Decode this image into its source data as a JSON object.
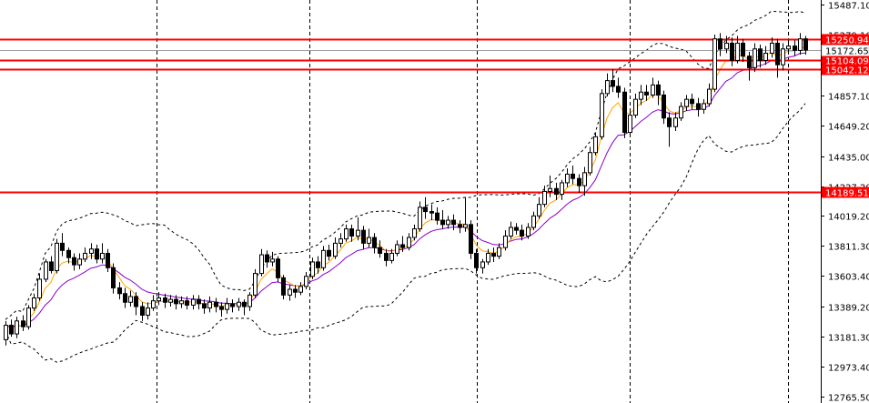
{
  "chart_data": {
    "type": "candlestick",
    "ylim": [
      12720,
      15520
    ],
    "y_ticks": [
      15487.1,
      15279.1,
      15065.1,
      14857.1,
      14649.2,
      14435.0,
      14227.2,
      14019.2,
      13811.3,
      13603.4,
      13389.2,
      13181.3,
      12973.4,
      12765.5
    ],
    "y_tick_labels": [
      "15487.10",
      "15279.10",
      "15065.10",
      "14857.10",
      "14649.20",
      "14435.00",
      "14227.20",
      "14019.20",
      "13811.30",
      "13603.40",
      "13389.20",
      "13181.30",
      "12973.40",
      "12765.50"
    ],
    "levels": [
      {
        "value": 15250.94,
        "label": "15250.94",
        "color": "#ff0000"
      },
      {
        "value": 15104.09,
        "label": "15104.09",
        "color": "#ff0000"
      },
      {
        "value": 15042.12,
        "label": "15042.12",
        "color": "#ff0000"
      },
      {
        "value": 14189.51,
        "label": "14189.51",
        "color": "#ff0000"
      }
    ],
    "current_price": {
      "value": 15172.65,
      "label": "15172.65"
    },
    "candles": [
      [
        13160,
        13260,
        13120,
        13290
      ],
      [
        13260,
        13200,
        13180,
        13300
      ],
      [
        13200,
        13290,
        13170,
        13320
      ],
      [
        13290,
        13250,
        13220,
        13330
      ],
      [
        13250,
        13380,
        13230,
        13400
      ],
      [
        13380,
        13450,
        13360,
        13480
      ],
      [
        13450,
        13580,
        13430,
        13620
      ],
      [
        13580,
        13700,
        13560,
        13720
      ],
      [
        13700,
        13640,
        13620,
        13740
      ],
      [
        13640,
        13830,
        13620,
        13860
      ],
      [
        13830,
        13780,
        13740,
        13900
      ],
      [
        13780,
        13730,
        13690,
        13800
      ],
      [
        13730,
        13680,
        13640,
        13760
      ],
      [
        13680,
        13720,
        13650,
        13760
      ],
      [
        13720,
        13760,
        13700,
        13800
      ],
      [
        13760,
        13790,
        13720,
        13830
      ],
      [
        13790,
        13720,
        13690,
        13820
      ],
      [
        13720,
        13760,
        13690,
        13830
      ],
      [
        13760,
        13660,
        13630,
        13790
      ],
      [
        13660,
        13520,
        13480,
        13690
      ],
      [
        13520,
        13480,
        13440,
        13560
      ],
      [
        13480,
        13420,
        13380,
        13520
      ],
      [
        13420,
        13460,
        13390,
        13500
      ],
      [
        13460,
        13390,
        13330,
        13490
      ],
      [
        13390,
        13330,
        13290,
        13420
      ],
      [
        13330,
        13380,
        13300,
        13420
      ],
      [
        13380,
        13430,
        13360,
        13470
      ],
      [
        13430,
        13450,
        13400,
        13490
      ],
      [
        13450,
        13420,
        13380,
        13480
      ],
      [
        13420,
        13440,
        13390,
        13470
      ],
      [
        13440,
        13410,
        13370,
        13470
      ],
      [
        13410,
        13430,
        13380,
        13460
      ],
      [
        13430,
        13400,
        13370,
        13460
      ],
      [
        13400,
        13440,
        13370,
        13470
      ],
      [
        13440,
        13410,
        13370,
        13470
      ],
      [
        13410,
        13380,
        13340,
        13440
      ],
      [
        13380,
        13420,
        13350,
        13460
      ],
      [
        13420,
        13390,
        13350,
        13450
      ],
      [
        13390,
        13370,
        13320,
        13420
      ],
      [
        13370,
        13410,
        13340,
        13450
      ],
      [
        13410,
        13390,
        13350,
        13440
      ],
      [
        13390,
        13420,
        13360,
        13450
      ],
      [
        13420,
        13390,
        13330,
        13440
      ],
      [
        13390,
        13470,
        13360,
        13490
      ],
      [
        13470,
        13620,
        13450,
        13650
      ],
      [
        13620,
        13750,
        13600,
        13790
      ],
      [
        13750,
        13700,
        13660,
        13780
      ],
      [
        13700,
        13720,
        13670,
        13770
      ],
      [
        13720,
        13590,
        13560,
        13740
      ],
      [
        13590,
        13470,
        13440,
        13610
      ],
      [
        13470,
        13510,
        13430,
        13540
      ],
      [
        13510,
        13490,
        13450,
        13540
      ],
      [
        13490,
        13530,
        13470,
        13560
      ],
      [
        13530,
        13600,
        13510,
        13630
      ],
      [
        13600,
        13700,
        13580,
        13730
      ],
      [
        13700,
        13660,
        13620,
        13740
      ],
      [
        13660,
        13780,
        13640,
        13810
      ],
      [
        13780,
        13740,
        13710,
        13820
      ],
      [
        13740,
        13830,
        13720,
        13870
      ],
      [
        13830,
        13860,
        13800,
        13900
      ],
      [
        13860,
        13930,
        13840,
        13960
      ],
      [
        13930,
        13880,
        13840,
        13960
      ],
      [
        13880,
        13920,
        13850,
        14010
      ],
      [
        13920,
        13830,
        13790,
        13950
      ],
      [
        13830,
        13870,
        13800,
        13930
      ],
      [
        13870,
        13800,
        13760,
        13900
      ],
      [
        13800,
        13760,
        13730,
        13850
      ],
      [
        13760,
        13710,
        13670,
        13790
      ],
      [
        13710,
        13760,
        13690,
        13790
      ],
      [
        13760,
        13820,
        13740,
        13850
      ],
      [
        13820,
        13800,
        13770,
        13880
      ],
      [
        13800,
        13870,
        13780,
        13900
      ],
      [
        13870,
        13930,
        13850,
        13960
      ],
      [
        13930,
        14080,
        13910,
        14120
      ],
      [
        14080,
        14050,
        14000,
        14150
      ],
      [
        14050,
        14040,
        13990,
        14100
      ],
      [
        14040,
        13990,
        13960,
        14080
      ],
      [
        13990,
        13960,
        13930,
        14060
      ],
      [
        13960,
        13990,
        13930,
        14020
      ],
      [
        13990,
        13960,
        13920,
        14030
      ],
      [
        13960,
        13940,
        13900,
        13990
      ],
      [
        13940,
        13960,
        13910,
        14150
      ],
      [
        13960,
        13760,
        13720,
        13990
      ],
      [
        13760,
        13660,
        13620,
        13790
      ],
      [
        13660,
        13700,
        13620,
        13720
      ],
      [
        13700,
        13760,
        13680,
        13790
      ],
      [
        13760,
        13740,
        13700,
        13800
      ],
      [
        13740,
        13800,
        13720,
        13830
      ],
      [
        13800,
        13880,
        13780,
        13920
      ],
      [
        13880,
        13940,
        13860,
        13980
      ],
      [
        13940,
        13920,
        13890,
        13970
      ],
      [
        13920,
        13880,
        13850,
        13960
      ],
      [
        13880,
        13940,
        13860,
        13970
      ],
      [
        13940,
        14020,
        13920,
        14050
      ],
      [
        14020,
        14100,
        14000,
        14150
      ],
      [
        14100,
        14190,
        14080,
        14230
      ],
      [
        14190,
        14210,
        14150,
        14300
      ],
      [
        14210,
        14170,
        14130,
        14250
      ],
      [
        14170,
        14250,
        14130,
        14270
      ],
      [
        14250,
        14310,
        14220,
        14350
      ],
      [
        14310,
        14280,
        14240,
        14370
      ],
      [
        14280,
        14230,
        14180,
        14310
      ],
      [
        14230,
        14320,
        14160,
        14360
      ],
      [
        14320,
        14460,
        14300,
        14500
      ],
      [
        14460,
        14570,
        14440,
        14600
      ],
      [
        14570,
        14870,
        14550,
        14900
      ],
      [
        14870,
        14960,
        14850,
        15010
      ],
      [
        14960,
        14920,
        14880,
        15040
      ],
      [
        14920,
        14880,
        14840,
        14980
      ],
      [
        14880,
        14600,
        14560,
        14910
      ],
      [
        14600,
        14720,
        14580,
        14760
      ],
      [
        14720,
        14830,
        14700,
        14870
      ],
      [
        14830,
        14880,
        14790,
        14930
      ],
      [
        14880,
        14860,
        14820,
        14930
      ],
      [
        14860,
        14930,
        14840,
        14980
      ],
      [
        14930,
        14860,
        14790,
        14960
      ],
      [
        14860,
        14700,
        14660,
        14890
      ],
      [
        14700,
        14640,
        14500,
        14740
      ],
      [
        14640,
        14700,
        14610,
        14740
      ],
      [
        14700,
        14780,
        14680,
        14810
      ],
      [
        14780,
        14830,
        14750,
        14860
      ],
      [
        14830,
        14800,
        14760,
        14870
      ],
      [
        14800,
        14760,
        14710,
        14840
      ],
      [
        14760,
        14800,
        14730,
        14830
      ],
      [
        14800,
        14900,
        14780,
        14940
      ],
      [
        14900,
        15250,
        14880,
        15280
      ],
      [
        15250,
        15180,
        15130,
        15290
      ],
      [
        15180,
        15220,
        15150,
        15270
      ],
      [
        15220,
        15100,
        15060,
        15260
      ],
      [
        15100,
        15220,
        15080,
        15270
      ],
      [
        15220,
        15130,
        15090,
        15250
      ],
      [
        15130,
        15050,
        14960,
        15160
      ],
      [
        15050,
        15180,
        15020,
        15220
      ],
      [
        15180,
        15100,
        15050,
        15210
      ],
      [
        15100,
        15150,
        15070,
        15200
      ],
      [
        15150,
        15220,
        15120,
        15260
      ],
      [
        15220,
        15070,
        14980,
        15250
      ],
      [
        15070,
        15180,
        15030,
        15220
      ],
      [
        15180,
        15200,
        15150,
        15240
      ],
      [
        15200,
        15170,
        15130,
        15240
      ],
      [
        15170,
        15250,
        15140,
        15290
      ],
      [
        15250,
        15172,
        15140,
        15270
      ]
    ]
  }
}
